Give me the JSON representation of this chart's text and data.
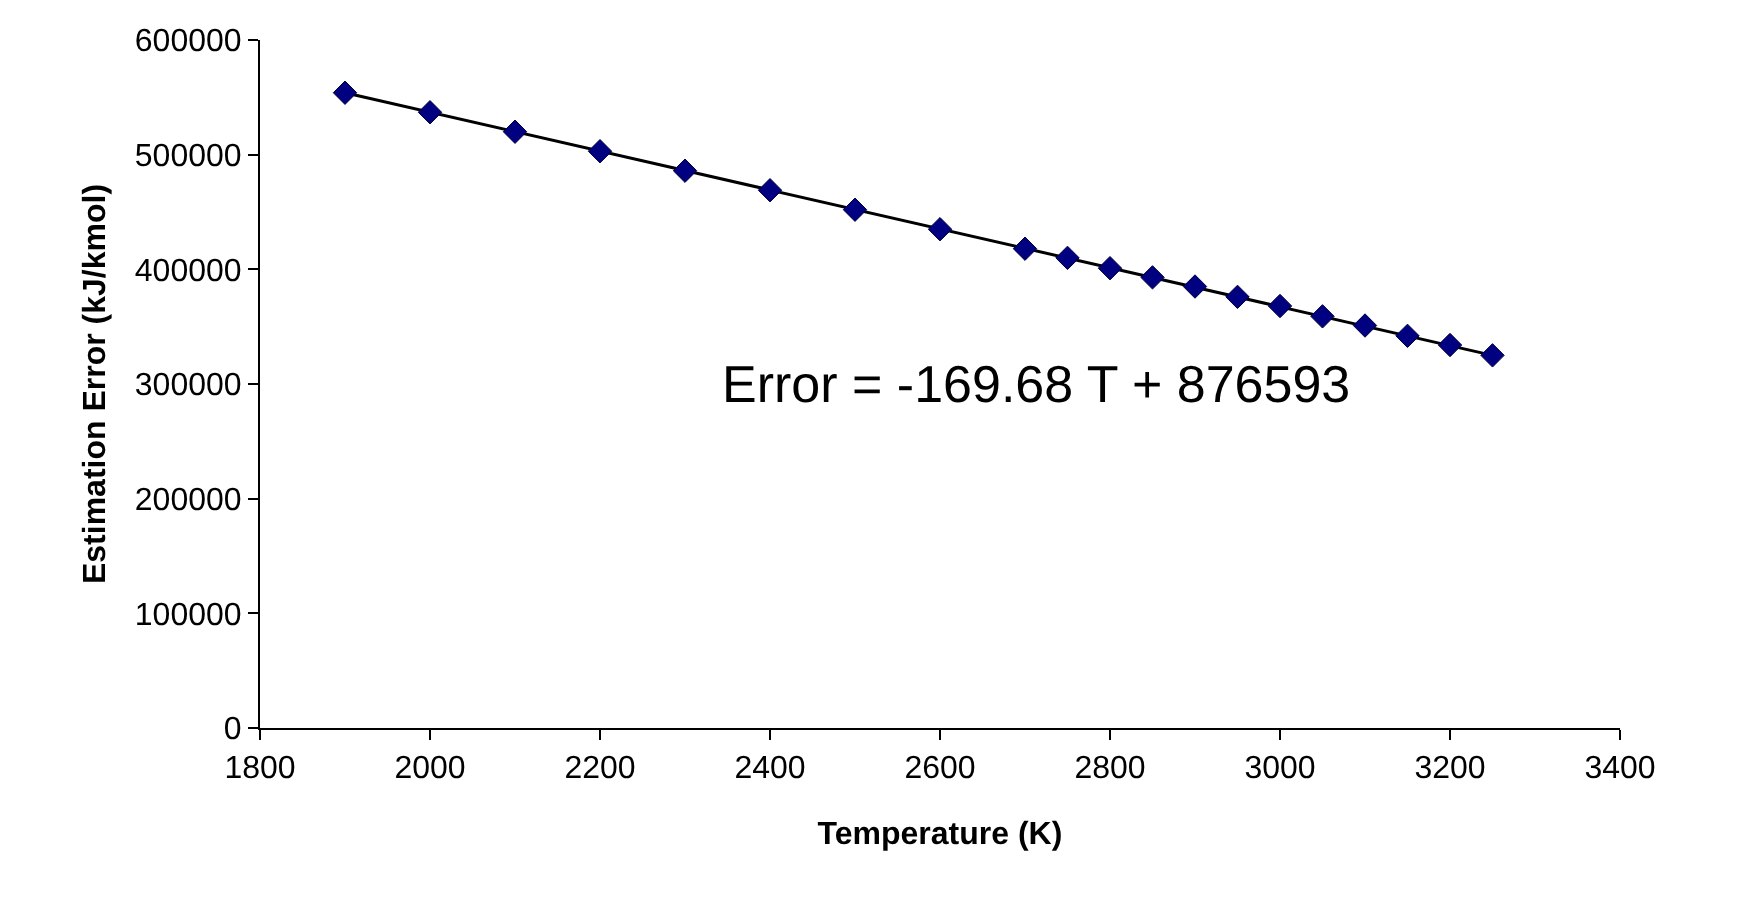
{
  "chart_data": {
    "type": "scatter",
    "xlabel": "Temperature (K)",
    "ylabel": "Estimation Error (kJ/kmol)",
    "x": [
      1900,
      2000,
      2100,
      2200,
      2300,
      2400,
      2500,
      2600,
      2700,
      2750,
      2800,
      2850,
      2900,
      2950,
      3000,
      3050,
      3100,
      3150,
      3200,
      3250
    ],
    "series": [
      {
        "color": "#000080",
        "marker": "diamond",
        "values": [
          554000,
          537000,
          520000,
          503000,
          486000,
          469000,
          452000,
          435000,
          418000,
          410000,
          401000,
          393000,
          385000,
          376000,
          368000,
          359000,
          351000,
          342000,
          334000,
          325000
        ]
      },
      {
        "type": "line",
        "marker": "none",
        "color": "#000000",
        "x": [
          1900,
          3250
        ],
        "values": [
          554000,
          325000
        ]
      }
    ],
    "xlim": [
      1800,
      3400
    ],
    "xticks": [
      1800,
      2000,
      2200,
      2400,
      2600,
      2800,
      3000,
      3200,
      3400
    ],
    "ylim": [
      0,
      600000
    ],
    "yticks": [
      0,
      100000,
      200000,
      300000,
      400000,
      500000,
      600000
    ],
    "grid": false,
    "annotations": [
      "Error = -169.68 T + 876593"
    ]
  }
}
